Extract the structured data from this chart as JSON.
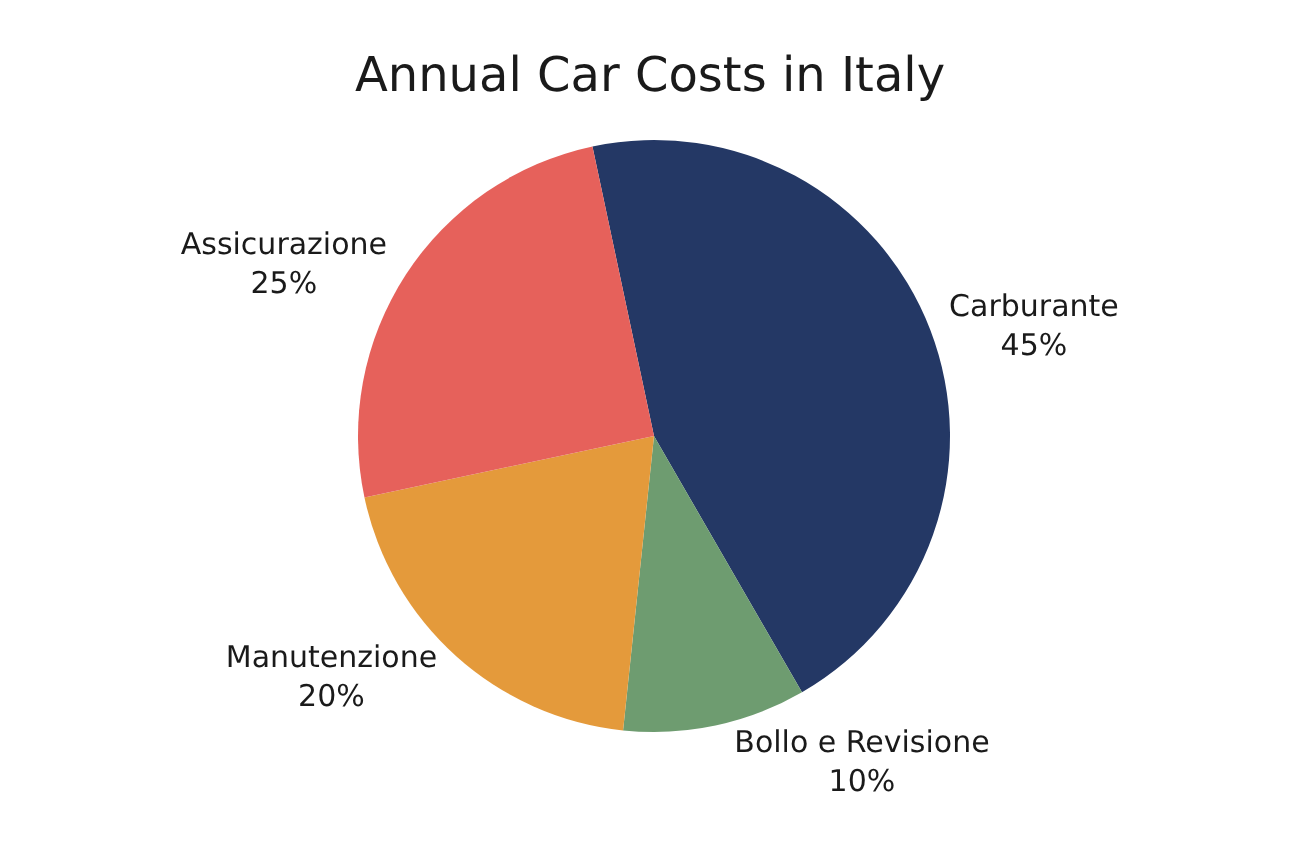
{
  "chart_data": {
    "type": "pie",
    "title": "Annual Car Costs in Italy",
    "categories": [
      "Carburante",
      "Bollo e Revisione",
      "Manutenzione",
      "Assicurazione"
    ],
    "values": [
      45,
      10,
      20,
      25
    ],
    "value_labels": [
      "45%",
      "10%",
      "20%",
      "25%"
    ],
    "colors": [
      "#243865",
      "#6e9c70",
      "#e49a3b",
      "#e6615b"
    ]
  }
}
